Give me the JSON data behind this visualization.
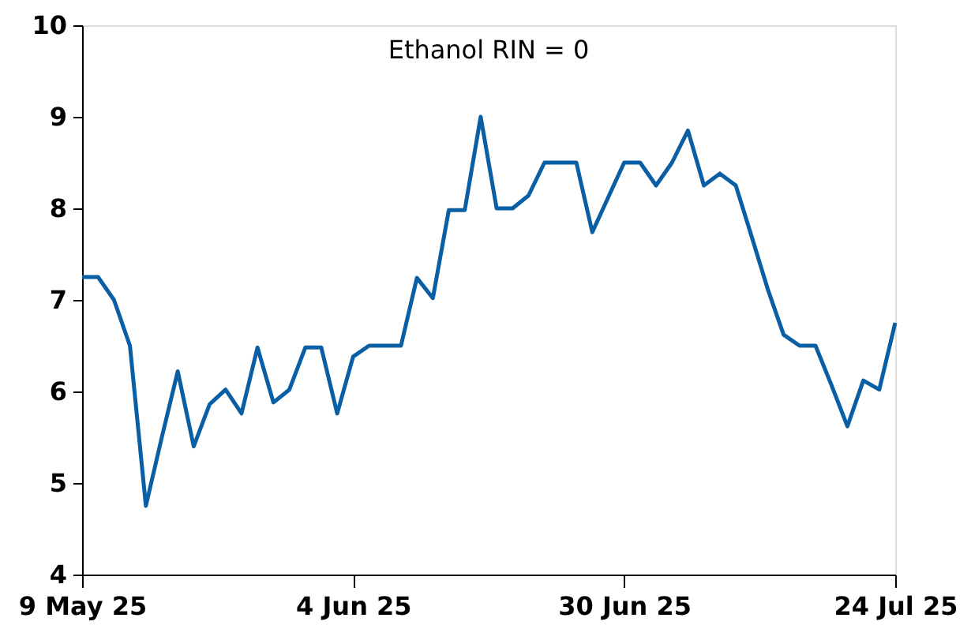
{
  "chart_data": {
    "type": "line",
    "title": "Ethanol RIN = 0",
    "categories": [
      "9 May 25",
      null,
      null,
      null,
      null,
      null,
      null,
      null,
      null,
      null,
      null,
      null,
      null,
      null,
      null,
      null,
      null,
      "4 Jun 25",
      null,
      null,
      null,
      null,
      null,
      null,
      null,
      null,
      null,
      null,
      null,
      null,
      null,
      null,
      null,
      null,
      "30 Jun 25",
      null,
      null,
      null,
      null,
      null,
      null,
      null,
      null,
      null,
      null,
      null,
      null,
      null,
      null,
      null,
      null,
      "24 Jul 25"
    ],
    "series": [
      {
        "color": "#0a5fa4",
        "values": [
          7.25,
          7.25,
          7.0,
          6.5,
          4.75,
          5.5,
          6.22,
          5.4,
          5.86,
          6.02,
          5.76,
          6.48,
          5.88,
          6.02,
          6.48,
          6.48,
          5.76,
          6.38,
          6.5,
          6.5,
          6.5,
          7.24,
          7.02,
          7.98,
          7.98,
          9.0,
          8.0,
          8.0,
          8.14,
          8.5,
          8.5,
          8.5,
          7.74,
          8.12,
          8.5,
          8.5,
          8.25,
          8.5,
          8.85,
          8.25,
          8.38,
          8.25,
          7.69,
          7.12,
          6.62,
          6.5,
          6.5,
          6.07,
          5.62,
          6.12,
          6.02,
          6.75
        ]
      }
    ],
    "ylim": [
      4,
      10
    ],
    "yticks": [
      4,
      5,
      6,
      7,
      8,
      9,
      10
    ],
    "grid": false,
    "legend": false,
    "marker": "none",
    "line_style": "solid"
  }
}
